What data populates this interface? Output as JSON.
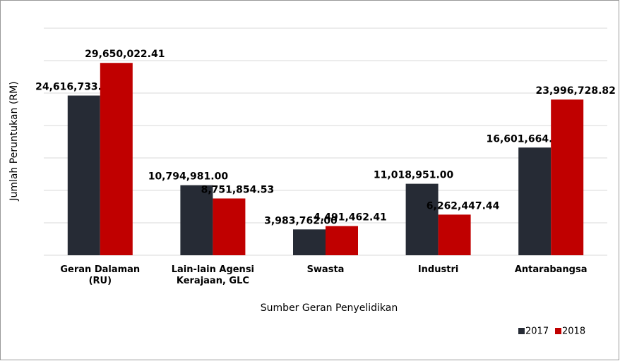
{
  "chart_data": {
    "type": "bar",
    "categories": [
      "Geran Dalaman (RU)",
      "Lain-lain Agensi Kerajaan, GLC",
      "Swasta",
      "Industri",
      "Antarabangsa"
    ],
    "series": [
      {
        "name": "2017",
        "color": "#262b35",
        "values": [
          24616733.0,
          10794981.0,
          3983762.0,
          11018951.0,
          16601664.0
        ],
        "value_labels": [
          "24,616,733.00",
          "10,794,981.00",
          "3,983,762.00",
          "11,018,951.00",
          "16,601,664.00"
        ]
      },
      {
        "name": "2018",
        "color": "#c00000",
        "values": [
          29650022.41,
          8751854.53,
          4491462.41,
          6262447.44,
          23996728.82
        ],
        "value_labels": [
          "29,650,022.41",
          "8,751,854.53",
          "4,491,462.41",
          "6,262,447.44",
          "23,996,728.82"
        ]
      }
    ],
    "x_label": "Sumber Geran Penyelidikan",
    "y_label": "Jumlah Peruntukan (RM)",
    "ylim": [
      0,
      35000000
    ],
    "yticks": [
      0,
      5000000,
      10000000,
      15000000,
      20000000,
      25000000,
      30000000,
      35000000
    ],
    "grid": true,
    "legend": "bottom-right"
  }
}
